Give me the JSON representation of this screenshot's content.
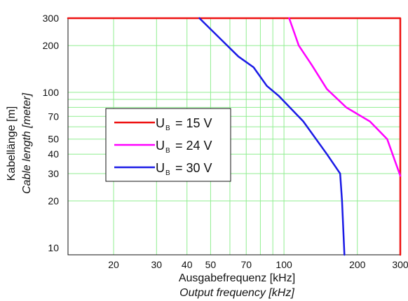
{
  "chart_data": {
    "type": "line",
    "x_scale": "log",
    "y_scale": "log",
    "xlim": [
      13,
      300
    ],
    "ylim": [
      9,
      300
    ],
    "grid": true,
    "grid_color": "#90ee90",
    "xlabel": "Ausgabefrequenz [kHz]",
    "xlabel_en": "Output frequency [kHz]",
    "ylabel": "Kabellänge [m]",
    "ylabel_en": "Cable length [meter]",
    "x_ticks": [
      20,
      30,
      40,
      50,
      70,
      100,
      200,
      300
    ],
    "y_ticks": [
      10,
      20,
      30,
      40,
      50,
      70,
      100,
      200,
      300
    ],
    "x_grid": [
      20,
      30,
      40,
      50,
      60,
      70,
      80,
      90,
      100,
      200
    ],
    "y_grid": [
      20,
      30,
      40,
      50,
      60,
      70,
      80,
      90,
      100,
      200
    ],
    "legend_position": "center-left",
    "series": [
      {
        "name": "15 V",
        "color": "#ee1111",
        "x": [
          13,
          300,
          300
        ],
        "y": [
          300,
          300,
          9
        ]
      },
      {
        "name": "24 V",
        "color": "#ff00ff",
        "x": [
          105,
          115,
          130,
          150,
          180,
          225,
          265,
          300
        ],
        "y": [
          300,
          200,
          150,
          105,
          80,
          65,
          50,
          29
        ]
      },
      {
        "name": "30 V",
        "color": "#1a1ae6",
        "x": [
          45,
          55,
          65,
          75,
          85,
          95,
          120,
          150,
          170,
          173,
          177
        ],
        "y": [
          300,
          220,
          170,
          145,
          110,
          95,
          65,
          40,
          30,
          20,
          9
        ]
      }
    ]
  },
  "legend": {
    "symbol": "U",
    "subscript": "B",
    "items": [
      "= 15 V",
      "= 24 V",
      "= 30 V"
    ]
  }
}
